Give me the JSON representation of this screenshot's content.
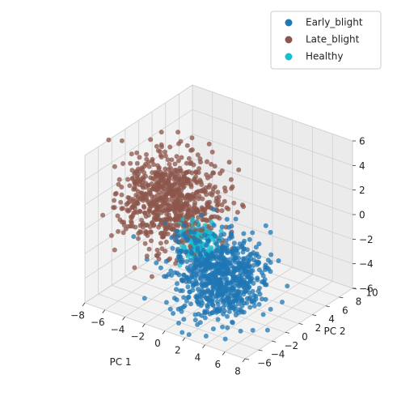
{
  "chart_data": {
    "type": "scatter",
    "subtype": "3d",
    "title": "",
    "axes": {
      "x": {
        "label": "PC 1",
        "ticks": [
          "−8",
          "−6",
          "−4",
          "−2",
          "0",
          "2",
          "4",
          "6",
          "8"
        ],
        "range": [
          -8,
          8
        ]
      },
      "y": {
        "label": "PC 2",
        "ticks": [
          "−6",
          "−4",
          "−2",
          "0",
          "2",
          "4",
          "6",
          "8",
          "10"
        ],
        "range": [
          -6,
          10
        ]
      },
      "z": {
        "label": "",
        "ticks": [
          "−6",
          "−4",
          "−2",
          "0",
          "2",
          "4",
          "6"
        ],
        "range": [
          -6,
          6
        ]
      }
    },
    "grid": true,
    "legend": {
      "placement": "top-right",
      "entries": [
        {
          "label": "Early_blight",
          "color": "#1f77b4"
        },
        {
          "label": "Late_blight",
          "color": "#8c564b"
        },
        {
          "label": "Healthy",
          "color": "#17becf"
        }
      ]
    },
    "series": [
      {
        "name": "Early_blight",
        "color": "#1f77b4",
        "cluster_center": [
          2.5,
          -1.5,
          -2.5
        ],
        "cluster_spread": [
          2.0,
          1.8,
          1.6
        ],
        "approx_count": 750
      },
      {
        "name": "Late_blight",
        "color": "#8c564b",
        "cluster_center": [
          -4.5,
          1.5,
          0.5
        ],
        "cluster_spread": [
          2.3,
          2.0,
          1.8
        ],
        "approx_count": 750
      },
      {
        "name": "Healthy",
        "color": "#17becf",
        "cluster_center": [
          -1.0,
          0.5,
          -1.5
        ],
        "cluster_spread": [
          0.9,
          0.8,
          0.8
        ],
        "approx_count": 120
      }
    ]
  }
}
